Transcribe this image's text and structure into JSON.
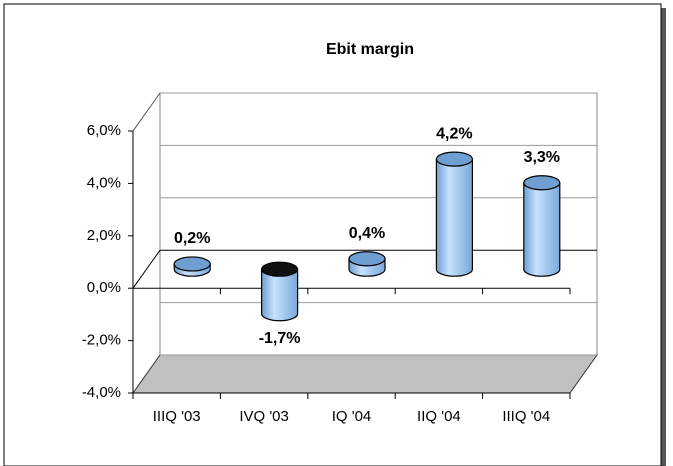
{
  "chart_data": {
    "type": "bar3d",
    "title": "Ebit margin",
    "categories": [
      "IIIQ '03",
      "IVQ '03",
      "IQ '04",
      "IIQ '04",
      "IIIQ '04"
    ],
    "values": [
      0.2,
      -1.7,
      0.4,
      4.2,
      3.3
    ],
    "value_labels": [
      "0,2%",
      "-1,7%",
      "0,4%",
      "4,2%",
      "3,3%"
    ],
    "color": "#99ccff",
    "ylim": [
      -4,
      6
    ],
    "yticks": [
      {
        "value": -4,
        "label": "-4,0%"
      },
      {
        "value": -2,
        "label": "-2,0%"
      },
      {
        "value": 0,
        "label": "0,0%"
      },
      {
        "value": 2,
        "label": "2,0%"
      },
      {
        "value": 4,
        "label": "4,0%"
      },
      {
        "value": 6,
        "label": "6,0%"
      }
    ],
    "grid": true
  }
}
